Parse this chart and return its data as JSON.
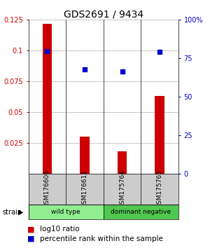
{
  "title": "GDS2691 / 9434",
  "samples": [
    "GSM176606",
    "GSM176611",
    "GSM175764",
    "GSM175765"
  ],
  "log10_ratio": [
    0.122,
    0.03,
    0.018,
    0.063
  ],
  "percentile_rank": [
    0.795,
    0.68,
    0.665,
    0.79
  ],
  "groups": [
    {
      "label": "wild type",
      "indices": [
        0,
        1
      ],
      "color": "#90EE90"
    },
    {
      "label": "dominant negative",
      "indices": [
        2,
        3
      ],
      "color": "#50C850"
    }
  ],
  "ylim_left": [
    0,
    0.125
  ],
  "ylim_right": [
    0,
    1.0
  ],
  "yticks_left": [
    0.025,
    0.05,
    0.075,
    0.1,
    0.125
  ],
  "ytick_labels_left": [
    "0.025",
    "0.05",
    "0.075",
    "0.1",
    "0.125"
  ],
  "yticks_right": [
    0.0,
    0.25,
    0.5,
    0.75,
    1.0
  ],
  "ytick_labels_right": [
    "0",
    "25",
    "50",
    "75",
    "100%"
  ],
  "bar_color": "#cc0000",
  "scatter_color": "#0000cc",
  "dotted_line_color": "#555555",
  "bg_color": "#ffffff",
  "sample_box_color": "#cccccc",
  "title_fontsize": 10,
  "tick_fontsize": 7,
  "label_fontsize": 7,
  "legend_fontsize": 7.5
}
